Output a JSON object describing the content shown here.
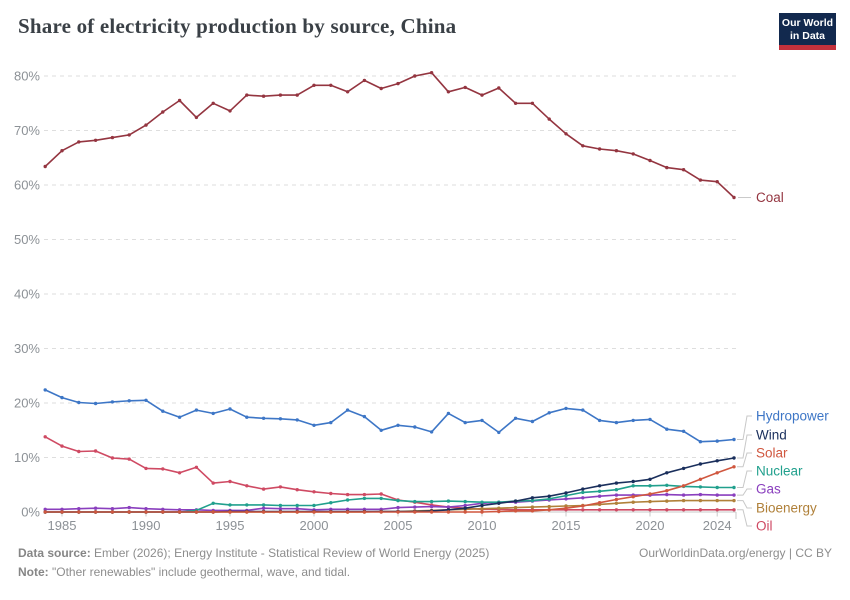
{
  "header": {
    "title": "Share of electricity production by source, China",
    "logo_line1": "Our World",
    "logo_line2": "in Data"
  },
  "chart_data": {
    "type": "line",
    "title": "Share of electricity production by source, China",
    "xlabel": "",
    "ylabel": "",
    "xlim": [
      1984,
      2025
    ],
    "ylim": [
      0,
      84
    ],
    "grid": "horizontal-dashed",
    "legend_position": "right-edge-labels",
    "y_tick_suffix": "%",
    "y_ticks": [
      0,
      10,
      20,
      30,
      40,
      50,
      60,
      70,
      80
    ],
    "x_ticks": [
      1985,
      1990,
      1995,
      2000,
      2005,
      2010,
      2015,
      2020,
      2024
    ],
    "x": [
      1984,
      1985,
      1986,
      1987,
      1988,
      1989,
      1990,
      1991,
      1992,
      1993,
      1994,
      1995,
      1996,
      1997,
      1998,
      1999,
      2000,
      2001,
      2002,
      2003,
      2004,
      2005,
      2006,
      2007,
      2008,
      2009,
      2010,
      2011,
      2012,
      2013,
      2014,
      2015,
      2016,
      2017,
      2018,
      2019,
      2020,
      2021,
      2022,
      2023,
      2024,
      2025
    ],
    "series": [
      {
        "name": "Coal",
        "color": "#943540",
        "values": [
          63.4,
          66.3,
          67.9,
          68.2,
          68.7,
          69.2,
          71.0,
          73.4,
          75.5,
          72.4,
          75.0,
          73.6,
          76.5,
          76.3,
          76.5,
          76.5,
          78.3,
          78.3,
          77.1,
          79.2,
          77.7,
          78.6,
          80.0,
          80.6,
          77.1,
          77.9,
          76.5,
          77.8,
          75.0,
          75.0,
          72.1,
          69.4,
          67.2,
          66.6,
          66.3,
          65.7,
          64.5,
          63.2,
          62.8,
          60.9,
          60.6,
          57.7
        ]
      },
      {
        "name": "Hydropower",
        "color": "#3D76C6",
        "values": [
          22.4,
          21.0,
          20.1,
          19.9,
          20.2,
          20.4,
          20.5,
          18.5,
          17.4,
          18.7,
          18.1,
          18.9,
          17.4,
          17.2,
          17.1,
          16.9,
          15.9,
          16.4,
          18.7,
          17.5,
          15.0,
          15.9,
          15.6,
          14.7,
          18.1,
          16.4,
          16.8,
          14.6,
          17.2,
          16.6,
          18.2,
          19.0,
          18.7,
          16.8,
          16.4,
          16.8,
          17.0,
          15.2,
          14.8,
          12.9,
          13.0,
          13.3
        ]
      },
      {
        "name": "Wind",
        "color": "#1A2F5C",
        "values": [
          0,
          0,
          0,
          0,
          0,
          0,
          0,
          0,
          0,
          0,
          0,
          0.1,
          0.1,
          0.1,
          0.1,
          0.1,
          0.1,
          0.1,
          0.1,
          0.1,
          0.1,
          0.1,
          0.1,
          0.2,
          0.4,
          0.7,
          1.2,
          1.6,
          2.0,
          2.6,
          2.9,
          3.5,
          4.2,
          4.8,
          5.3,
          5.6,
          6.0,
          7.2,
          8.0,
          8.8,
          9.4,
          9.9
        ]
      },
      {
        "name": "Solar",
        "color": "#D0573F",
        "values": [
          0,
          0,
          0,
          0,
          0,
          0,
          0,
          0,
          0,
          0,
          0,
          0,
          0,
          0,
          0,
          0,
          0,
          0,
          0,
          0,
          0,
          0,
          0,
          0,
          0,
          0,
          0,
          0.1,
          0.2,
          0.2,
          0.4,
          0.7,
          1.1,
          1.7,
          2.3,
          2.8,
          3.3,
          3.9,
          4.8,
          6.0,
          7.2,
          8.3
        ]
      },
      {
        "name": "Nuclear",
        "color": "#21A08D",
        "values": [
          0,
          0,
          0,
          0,
          0,
          0,
          0,
          0,
          0,
          0.3,
          1.6,
          1.3,
          1.3,
          1.3,
          1.2,
          1.2,
          1.2,
          1.7,
          2.2,
          2.5,
          2.5,
          2.1,
          1.9,
          1.9,
          2.0,
          1.9,
          1.8,
          1.8,
          2.0,
          2.1,
          2.4,
          3.0,
          3.6,
          3.8,
          4.1,
          4.8,
          4.8,
          4.9,
          4.7,
          4.6,
          4.5,
          4.5
        ]
      },
      {
        "name": "Gas",
        "color": "#8A3FBE",
        "values": [
          0.5,
          0.5,
          0.6,
          0.7,
          0.6,
          0.8,
          0.6,
          0.5,
          0.4,
          0.4,
          0.3,
          0.3,
          0.3,
          0.7,
          0.6,
          0.6,
          0.4,
          0.5,
          0.5,
          0.5,
          0.5,
          0.8,
          0.9,
          1.0,
          0.9,
          1.2,
          1.6,
          1.8,
          1.8,
          2.0,
          2.2,
          2.4,
          2.6,
          2.9,
          3.1,
          3.1,
          3.1,
          3.2,
          3.1,
          3.2,
          3.1,
          3.1
        ]
      },
      {
        "name": "Bioenergy",
        "color": "#B0813A",
        "values": [
          0,
          0,
          0,
          0,
          0,
          0,
          0,
          0,
          0,
          0,
          0,
          0,
          0,
          0,
          0,
          0,
          0,
          0,
          0,
          0,
          0.1,
          0.1,
          0.2,
          0.3,
          0.4,
          0.5,
          0.6,
          0.7,
          0.8,
          0.9,
          1.0,
          1.1,
          1.2,
          1.4,
          1.6,
          1.8,
          1.9,
          2.0,
          2.1,
          2.1,
          2.1,
          2.1
        ]
      },
      {
        "name": "Oil",
        "color": "#CF4A63",
        "values": [
          13.8,
          12.1,
          11.1,
          11.2,
          9.9,
          9.7,
          8.0,
          7.9,
          7.2,
          8.2,
          5.3,
          5.6,
          4.8,
          4.2,
          4.6,
          4.1,
          3.7,
          3.4,
          3.2,
          3.2,
          3.3,
          2.2,
          1.8,
          1.3,
          0.9,
          0.7,
          0.5,
          0.5,
          0.4,
          0.4,
          0.4,
          0.4,
          0.4,
          0.4,
          0.4,
          0.4,
          0.4,
          0.4,
          0.4,
          0.4,
          0.4,
          0.4
        ]
      }
    ]
  },
  "footer": {
    "source_label": "Data source:",
    "source_text": " Ember (2026); Energy Institute - Statistical Review of World Energy (2025)",
    "note_label": "Note:",
    "note_text": " \"Other renewables\" include geothermal, wave, and tidal.",
    "credit": "OurWorldinData.org/energy | CC BY"
  }
}
